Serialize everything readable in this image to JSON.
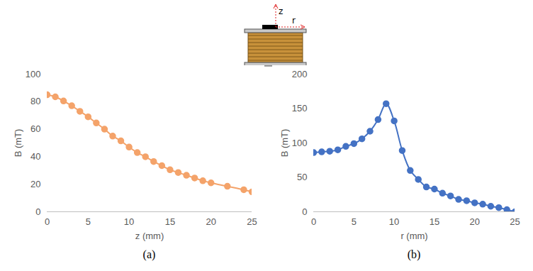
{
  "diagram": {
    "axis_labels": {
      "vertical": "z",
      "horizontal": "r"
    }
  },
  "chart_data": [
    {
      "type": "line",
      "caption": "(a)",
      "x_label": "z (mm)",
      "y_label": "B (mT)",
      "x": [
        0,
        1,
        2,
        3,
        4,
        5,
        6,
        7,
        8,
        9,
        10,
        11,
        12,
        13,
        14,
        15,
        16,
        17,
        18,
        19,
        20,
        22,
        24,
        25
      ],
      "values": [
        85,
        83.5,
        80.5,
        77,
        73,
        69,
        64.5,
        60,
        55,
        51.5,
        47,
        43,
        40,
        36.5,
        33.5,
        30.5,
        28.5,
        26.5,
        24.5,
        22.5,
        21,
        18.5,
        16,
        14.5
      ],
      "color": "#f4a36a",
      "marker": "circle",
      "line_style": "solid",
      "grid": false,
      "xlim": [
        0,
        25
      ],
      "xticks": [
        0,
        5,
        10,
        15,
        20,
        25
      ],
      "ylim": [
        0,
        100
      ],
      "yticks": [
        0,
        20,
        40,
        60,
        80,
        100
      ]
    },
    {
      "type": "line",
      "caption": "(b)",
      "x_label": "r (mm)",
      "y_label": "B (mT)",
      "x": [
        0,
        1,
        2,
        3,
        4,
        5,
        6,
        7,
        8,
        9,
        10,
        11,
        12,
        13,
        14,
        15,
        16,
        17,
        18,
        19,
        20,
        21,
        22,
        23,
        24,
        25
      ],
      "values": [
        86,
        87,
        88,
        90,
        95,
        99,
        106,
        117,
        134,
        157,
        132,
        89,
        60,
        47,
        36,
        33,
        27,
        23,
        18,
        16,
        13,
        11,
        8,
        6,
        3,
        0
      ],
      "color": "#4472c4",
      "marker": "circle",
      "line_style": "solid",
      "grid": false,
      "xlim": [
        0,
        25
      ],
      "xticks": [
        0,
        5,
        10,
        15,
        20,
        25
      ],
      "ylim": [
        0,
        200
      ],
      "yticks": [
        0,
        50,
        100,
        150,
        200
      ]
    }
  ]
}
